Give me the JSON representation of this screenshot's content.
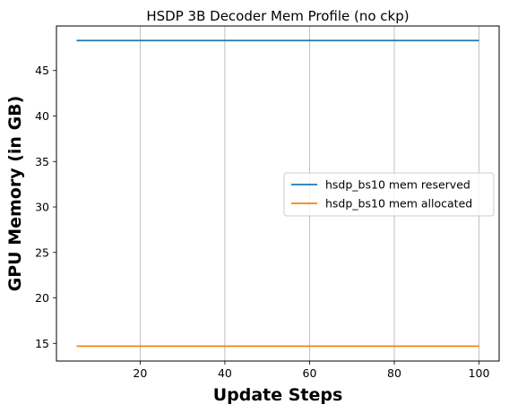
{
  "chart_data": {
    "type": "line",
    "title": "HSDP 3B Decoder Mem Profile (no ckp)",
    "xlabel": "Update Steps",
    "ylabel": "GPU Memory (in GB)",
    "xlim": [
      0.25,
      104.75
    ],
    "ylim": [
      13.06,
      49.9
    ],
    "xticks": [
      20,
      40,
      60,
      80,
      100
    ],
    "yticks": [
      15,
      20,
      25,
      30,
      35,
      40,
      45
    ],
    "grid": "x-major",
    "legend_position": "center-right",
    "series": [
      {
        "name": "hsdp_bs10 mem reserved",
        "color": "#1f77b4",
        "x": [
          5,
          10,
          15,
          20,
          25,
          30,
          35,
          40,
          45,
          50,
          55,
          60,
          65,
          70,
          75,
          80,
          85,
          90,
          95,
          100
        ],
        "y": [
          48.3,
          48.3,
          48.3,
          48.3,
          48.3,
          48.3,
          48.3,
          48.3,
          48.3,
          48.3,
          48.3,
          48.3,
          48.3,
          48.3,
          48.3,
          48.3,
          48.3,
          48.3,
          48.3,
          48.3
        ]
      },
      {
        "name": "hsdp_bs10 mem allocated",
        "color": "#ff7f0e",
        "x": [
          5,
          10,
          15,
          20,
          25,
          30,
          35,
          40,
          45,
          50,
          55,
          60,
          65,
          70,
          75,
          80,
          85,
          90,
          95,
          100
        ],
        "y": [
          14.7,
          14.7,
          14.7,
          14.7,
          14.7,
          14.7,
          14.7,
          14.7,
          14.7,
          14.7,
          14.7,
          14.7,
          14.7,
          14.7,
          14.7,
          14.7,
          14.7,
          14.7,
          14.7,
          14.7
        ]
      }
    ]
  }
}
